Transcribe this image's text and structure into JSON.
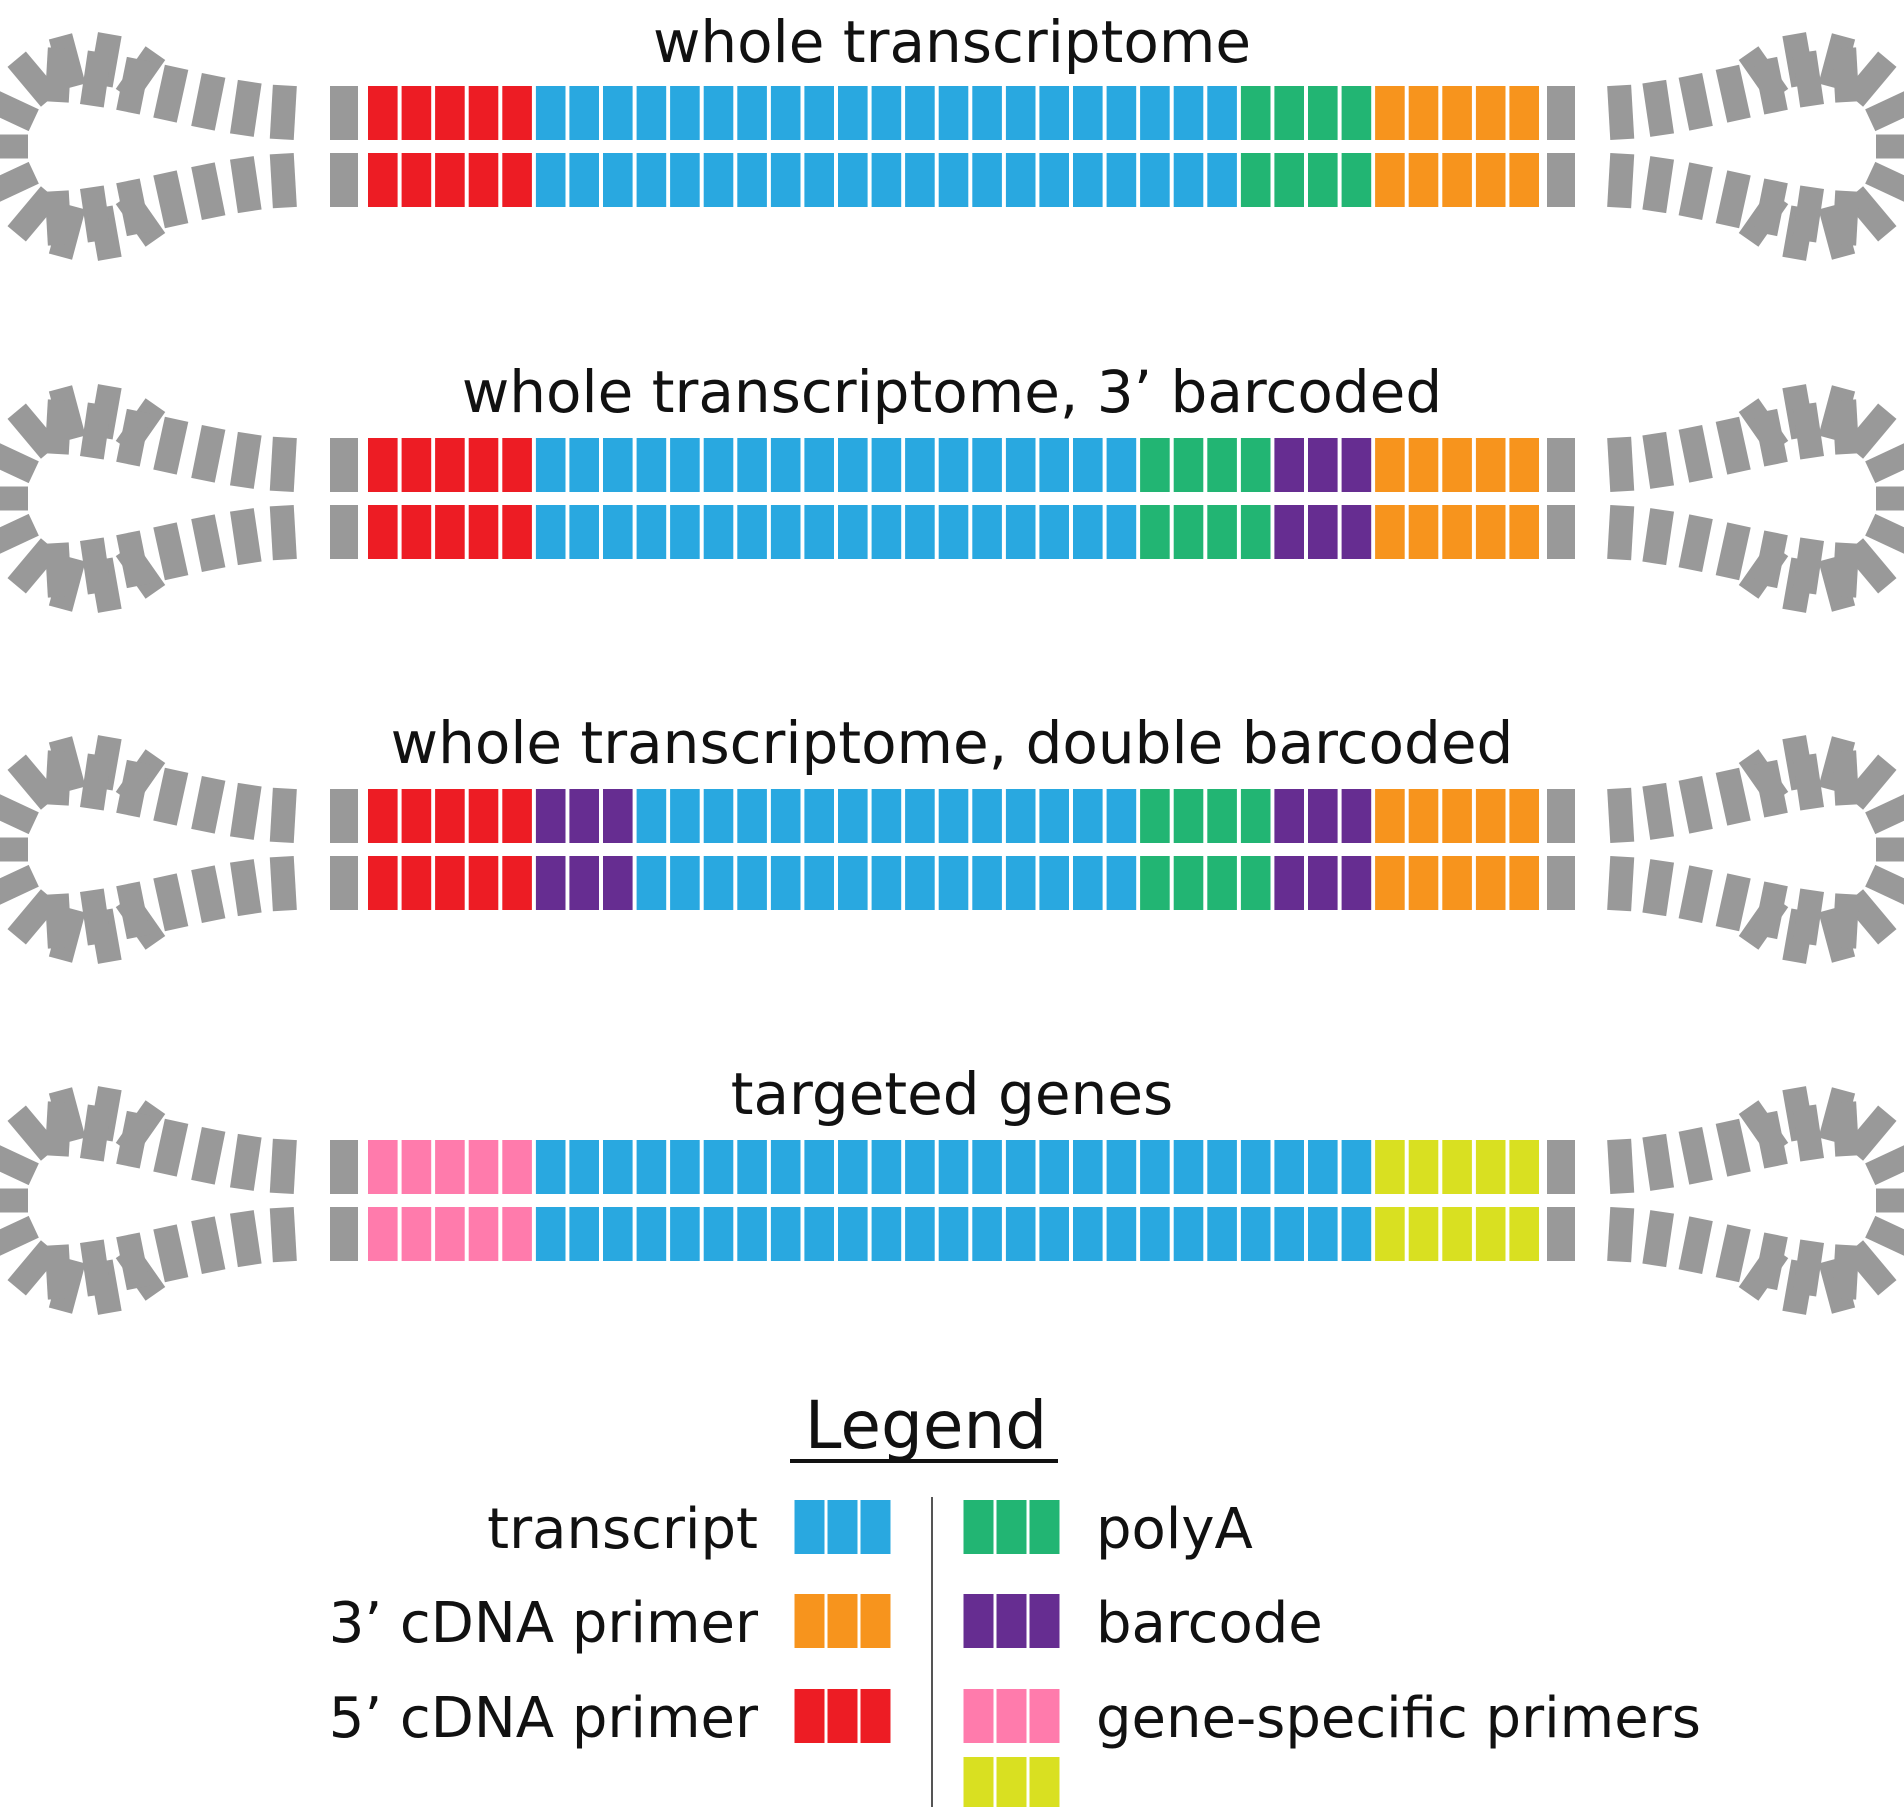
{
  "colors": {
    "loop": "#999999",
    "transcript": "#29a8e0",
    "primer_3": "#f7941d",
    "primer_5": "#ed1c24",
    "polyA": "#22b573",
    "barcode": "#662d91",
    "gene_specific_5": "#ff7bac",
    "gene_specific_3": "#d9e021"
  },
  "constructs": [
    {
      "title": "whole transcriptome",
      "segments": [
        {
          "type": "primer_5",
          "count": 5
        },
        {
          "type": "transcript",
          "count": 21
        },
        {
          "type": "polyA",
          "count": 4
        },
        {
          "type": "primer_3",
          "count": 5
        }
      ]
    },
    {
      "title": "whole transcriptome, 3’ barcoded",
      "segments": [
        {
          "type": "primer_5",
          "count": 5
        },
        {
          "type": "transcript",
          "count": 18
        },
        {
          "type": "polyA",
          "count": 4
        },
        {
          "type": "barcode",
          "count": 3
        },
        {
          "type": "primer_3",
          "count": 5
        }
      ]
    },
    {
      "title": "whole transcriptome, double barcoded",
      "segments": [
        {
          "type": "primer_5",
          "count": 5
        },
        {
          "type": "barcode",
          "count": 3
        },
        {
          "type": "transcript",
          "count": 15
        },
        {
          "type": "polyA",
          "count": 4
        },
        {
          "type": "barcode",
          "count": 3
        },
        {
          "type": "primer_3",
          "count": 5
        }
      ]
    },
    {
      "title": "targeted genes",
      "segments": [
        {
          "type": "gene_specific_5",
          "count": 5
        },
        {
          "type": "transcript",
          "count": 25
        },
        {
          "type": "gene_specific_3",
          "count": 5
        }
      ]
    }
  ],
  "legend": {
    "title": "Legend",
    "left": [
      {
        "label": "transcript",
        "swatches": [
          "transcript"
        ]
      },
      {
        "label": "3’ cDNA primer",
        "swatches": [
          "primer_3"
        ]
      },
      {
        "label": "5’ cDNA primer",
        "swatches": [
          "primer_5"
        ]
      }
    ],
    "right": [
      {
        "label": "polyA",
        "swatches": [
          "polyA"
        ]
      },
      {
        "label": "barcode",
        "swatches": [
          "barcode"
        ]
      },
      {
        "label": "gene-specific primers",
        "swatches": [
          "gene_specific_5",
          "gene_specific_3"
        ]
      }
    ]
  }
}
